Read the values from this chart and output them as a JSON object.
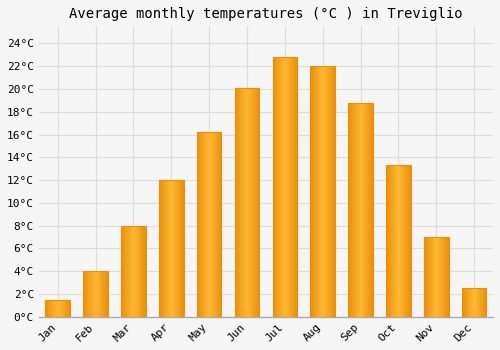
{
  "title": "Average monthly temperatures (°C ) in Treviglio",
  "months": [
    "Jan",
    "Feb",
    "Mar",
    "Apr",
    "May",
    "Jun",
    "Jul",
    "Aug",
    "Sep",
    "Oct",
    "Nov",
    "Dec"
  ],
  "values": [
    1.5,
    4.0,
    8.0,
    12.0,
    16.2,
    20.1,
    22.8,
    22.0,
    18.8,
    13.3,
    7.0,
    2.5
  ],
  "bar_color_center": "#FFB733",
  "bar_color_edge": "#E8900A",
  "background_color": "#f5f5f5",
  "plot_bg_color": "#f5f5f5",
  "grid_color": "#dddddd",
  "yticks": [
    0,
    2,
    4,
    6,
    8,
    10,
    12,
    14,
    16,
    18,
    20,
    22,
    24
  ],
  "ylim": [
    0,
    25.5
  ],
  "title_fontsize": 10,
  "tick_fontsize": 8,
  "font_family": "monospace",
  "bar_width": 0.65
}
